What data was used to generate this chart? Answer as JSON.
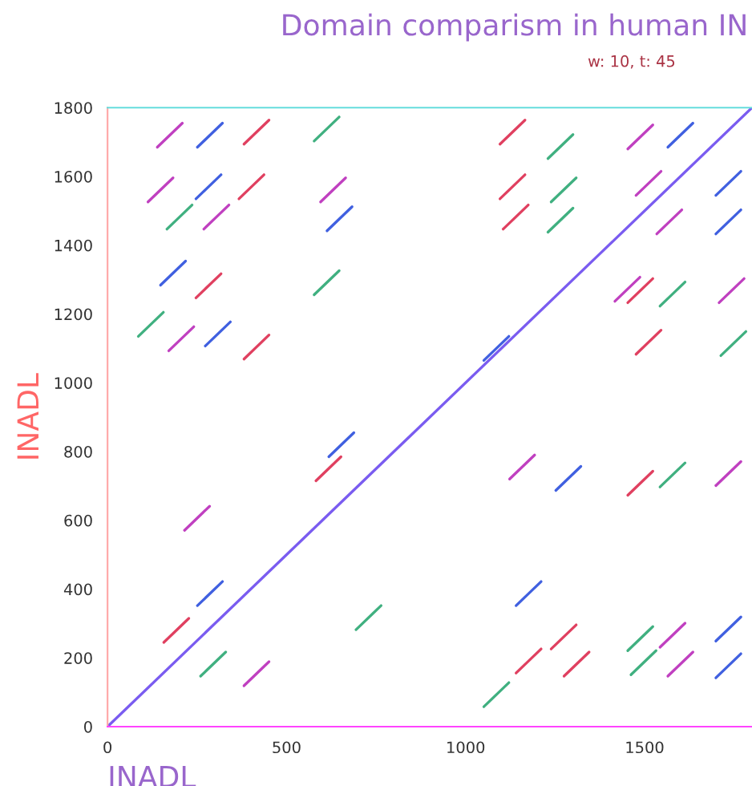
{
  "chart_data": {
    "type": "line",
    "title": "Domain comparism in human IN",
    "subtitle": "w: 10, t: 45",
    "xlabel": "INADL",
    "ylabel": "INADL",
    "xlim": [
      0,
      1800
    ],
    "ylim": [
      0,
      1800
    ],
    "xticks": [
      0,
      500,
      1000,
      1500
    ],
    "yticks": [
      0,
      200,
      400,
      600,
      800,
      1000,
      1200,
      1400,
      1600,
      1800
    ],
    "grid": false,
    "legend": false,
    "marker": "none",
    "line_style": "solid",
    "series": [
      {
        "color": "#7a5cf0",
        "x": [
          0,
          1800
        ],
        "values": [
          0,
          1800
        ]
      },
      {
        "color": "#c040c0",
        "x": [
          139,
          209
        ],
        "values": [
          1685,
          1755
        ]
      },
      {
        "color": "#4060e0",
        "x": [
          251,
          321
        ],
        "values": [
          1685,
          1755
        ]
      },
      {
        "color": "#e04060",
        "x": [
          381,
          451
        ],
        "values": [
          1694,
          1764
        ]
      },
      {
        "color": "#40b080",
        "x": [
          577,
          647
        ],
        "values": [
          1703,
          1773
        ]
      },
      {
        "color": "#c040c0",
        "x": [
          113,
          183
        ],
        "values": [
          1526,
          1596
        ]
      },
      {
        "color": "#4060e0",
        "x": [
          247,
          317
        ],
        "values": [
          1535,
          1605
        ]
      },
      {
        "color": "#e04060",
        "x": [
          367,
          437
        ],
        "values": [
          1535,
          1605
        ]
      },
      {
        "color": "#40b080",
        "x": [
          166,
          236
        ],
        "values": [
          1447,
          1517
        ]
      },
      {
        "color": "#c040c0",
        "x": [
          269,
          339
        ],
        "values": [
          1447,
          1517
        ]
      },
      {
        "color": "#4060e0",
        "x": [
          148,
          218
        ],
        "values": [
          1284,
          1354
        ]
      },
      {
        "color": "#e04060",
        "x": [
          247,
          317
        ],
        "values": [
          1247,
          1317
        ]
      },
      {
        "color": "#40b080",
        "x": [
          86,
          156
        ],
        "values": [
          1135,
          1205
        ]
      },
      {
        "color": "#c040c0",
        "x": [
          171,
          241
        ],
        "values": [
          1093,
          1163
        ]
      },
      {
        "color": "#4060e0",
        "x": [
          273,
          343
        ],
        "values": [
          1107,
          1177
        ]
      },
      {
        "color": "#e04060",
        "x": [
          381,
          451
        ],
        "values": [
          1069,
          1139
        ]
      },
      {
        "color": "#40b080",
        "x": [
          577,
          647
        ],
        "values": [
          1256,
          1326
        ]
      },
      {
        "color": "#c040c0",
        "x": [
          595,
          665
        ],
        "values": [
          1526,
          1596
        ]
      },
      {
        "color": "#4060e0",
        "x": [
          613,
          683
        ],
        "values": [
          1442,
          1512
        ]
      },
      {
        "color": "#e04060",
        "x": [
          1096,
          1166
        ],
        "values": [
          1694,
          1764
        ]
      },
      {
        "color": "#40b080",
        "x": [
          1230,
          1300
        ],
        "values": [
          1652,
          1722
        ]
      },
      {
        "color": "#c040c0",
        "x": [
          1453,
          1523
        ],
        "values": [
          1680,
          1750
        ]
      },
      {
        "color": "#4060e0",
        "x": [
          1565,
          1635
        ],
        "values": [
          1685,
          1755
        ]
      },
      {
        "color": "#e04060",
        "x": [
          1096,
          1166
        ],
        "values": [
          1535,
          1605
        ]
      },
      {
        "color": "#40b080",
        "x": [
          1239,
          1309
        ],
        "values": [
          1526,
          1596
        ]
      },
      {
        "color": "#c040c0",
        "x": [
          1476,
          1546
        ],
        "values": [
          1545,
          1615
        ]
      },
      {
        "color": "#4060e0",
        "x": [
          1699,
          1769
        ],
        "values": [
          1545,
          1615
        ]
      },
      {
        "color": "#e04060",
        "x": [
          1105,
          1175
        ],
        "values": [
          1447,
          1517
        ]
      },
      {
        "color": "#40b080",
        "x": [
          1230,
          1300
        ],
        "values": [
          1438,
          1508
        ]
      },
      {
        "color": "#c040c0",
        "x": [
          1534,
          1604
        ],
        "values": [
          1433,
          1503
        ]
      },
      {
        "color": "#4060e0",
        "x": [
          1699,
          1769
        ],
        "values": [
          1433,
          1503
        ]
      },
      {
        "color": "#e04060",
        "x": [
          1453,
          1523
        ],
        "values": [
          1233,
          1303
        ]
      },
      {
        "color": "#40b080",
        "x": [
          1543,
          1613
        ],
        "values": [
          1223,
          1293
        ]
      },
      {
        "color": "#c040c0",
        "x": [
          1708,
          1778
        ],
        "values": [
          1233,
          1303
        ]
      },
      {
        "color": "#4060e0",
        "x": [
          1051,
          1121
        ],
        "values": [
          1065,
          1135
        ]
      },
      {
        "color": "#e04060",
        "x": [
          1476,
          1546
        ],
        "values": [
          1083,
          1153
        ]
      },
      {
        "color": "#40b080",
        "x": [
          1713,
          1783
        ],
        "values": [
          1079,
          1149
        ]
      },
      {
        "color": "#c040c0",
        "x": [
          215,
          285
        ],
        "values": [
          571,
          641
        ]
      },
      {
        "color": "#4060e0",
        "x": [
          251,
          321
        ],
        "values": [
          352,
          422
        ]
      },
      {
        "color": "#e04060",
        "x": [
          157,
          227
        ],
        "values": [
          245,
          315
        ]
      },
      {
        "color": "#40b080",
        "x": [
          260,
          330
        ],
        "values": [
          147,
          217
        ]
      },
      {
        "color": "#c040c0",
        "x": [
          381,
          451
        ],
        "values": [
          119,
          189
        ]
      },
      {
        "color": "#4060e0",
        "x": [
          618,
          688
        ],
        "values": [
          785,
          855
        ]
      },
      {
        "color": "#e04060",
        "x": [
          582,
          652
        ],
        "values": [
          715,
          785
        ]
      },
      {
        "color": "#40b080",
        "x": [
          694,
          764
        ],
        "values": [
          282,
          352
        ]
      },
      {
        "color": "#c040c0",
        "x": [
          1123,
          1193
        ],
        "values": [
          720,
          790
        ]
      },
      {
        "color": "#4060e0",
        "x": [
          1252,
          1322
        ],
        "values": [
          687,
          757
        ]
      },
      {
        "color": "#e04060",
        "x": [
          1453,
          1523
        ],
        "values": [
          673,
          743
        ]
      },
      {
        "color": "#40b080",
        "x": [
          1543,
          1613
        ],
        "values": [
          697,
          767
        ]
      },
      {
        "color": "#c040c0",
        "x": [
          1699,
          1769
        ],
        "values": [
          701,
          771
        ]
      },
      {
        "color": "#4060e0",
        "x": [
          1141,
          1211
        ],
        "values": [
          352,
          422
        ]
      },
      {
        "color": "#e04060",
        "x": [
          1239,
          1309
        ],
        "values": [
          226,
          296
        ]
      },
      {
        "color": "#40b080",
        "x": [
          1453,
          1523
        ],
        "values": [
          221,
          291
        ]
      },
      {
        "color": "#c040c0",
        "x": [
          1543,
          1613
        ],
        "values": [
          231,
          301
        ]
      },
      {
        "color": "#4060e0",
        "x": [
          1699,
          1769
        ],
        "values": [
          249,
          319
        ]
      },
      {
        "color": "#e04060",
        "x": [
          1141,
          1211
        ],
        "values": [
          156,
          226
        ]
      },
      {
        "color": "#40b080",
        "x": [
          1462,
          1532
        ],
        "values": [
          151,
          221
        ]
      },
      {
        "color": "#c040c0",
        "x": [
          1565,
          1635
        ],
        "values": [
          147,
          217
        ]
      },
      {
        "color": "#4060e0",
        "x": [
          1699,
          1769
        ],
        "values": [
          142,
          212
        ]
      },
      {
        "color": "#e04060",
        "x": [
          1275,
          1345
        ],
        "values": [
          147,
          217
        ]
      },
      {
        "color": "#40b080",
        "x": [
          1051,
          1121
        ],
        "values": [
          58,
          128
        ]
      },
      {
        "color": "#c040c0",
        "x": [
          1417,
          1487
        ],
        "values": [
          1237,
          1307
        ]
      }
    ]
  }
}
